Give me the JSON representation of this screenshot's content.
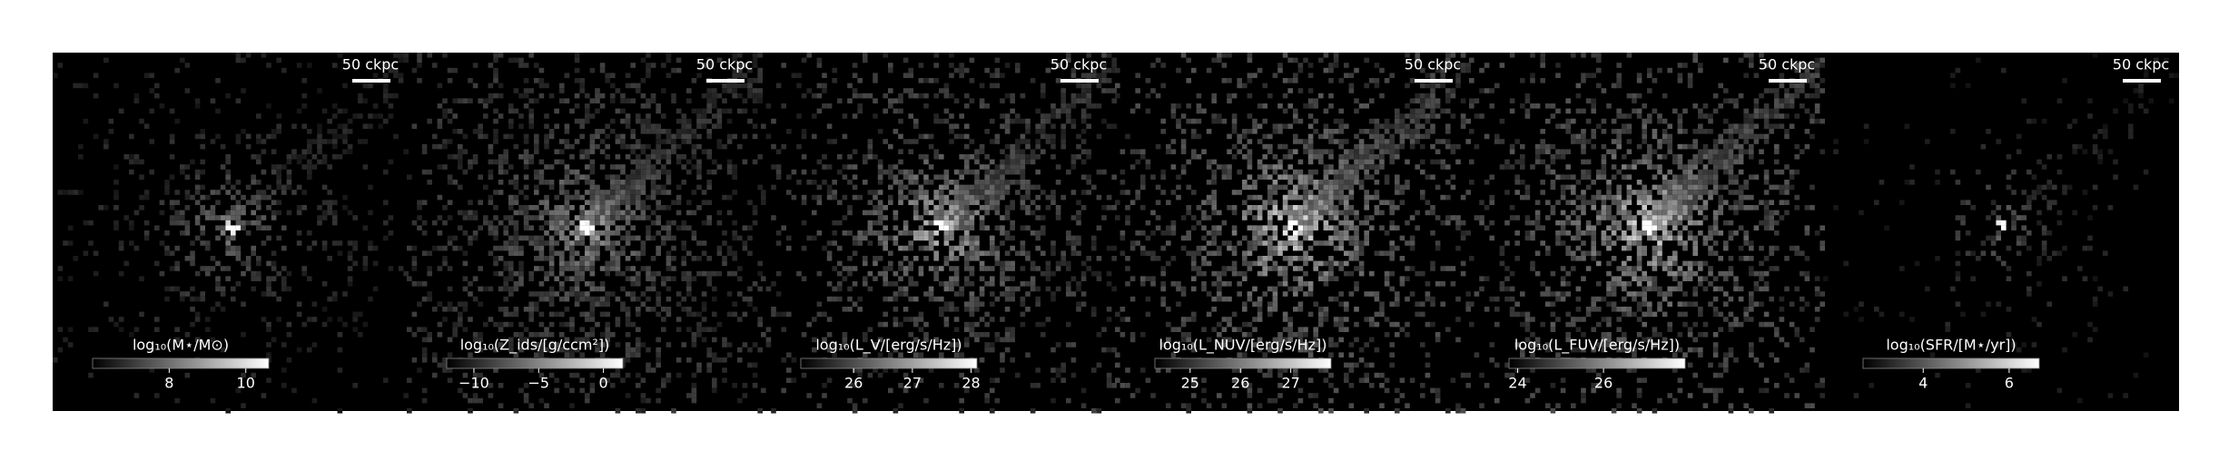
{
  "chart_data": [
    {
      "type": "image",
      "scalebar_label": "50 ckpc",
      "colorbar_label": "log₁₀(M⋆/M⊙)",
      "clim": [
        6.0,
        10.6
      ],
      "cticks": [
        8,
        10
      ]
    },
    {
      "type": "image",
      "scalebar_label": "50 ckpc",
      "colorbar_label": "log₁₀(Z_ids/[g/ccm²])",
      "clim": [
        -12.1,
        1.5
      ],
      "cticks": [
        {
          "value": -10,
          "label": "−10"
        },
        {
          "value": -5,
          "label": "−5"
        },
        0
      ]
    },
    {
      "type": "image",
      "scalebar_label": "50 ckpc",
      "colorbar_label": "log₁₀(L_V/[erg/s/Hz])",
      "clim": [
        25.1,
        28.1
      ],
      "cticks": [
        26,
        27,
        28
      ]
    },
    {
      "type": "image",
      "scalebar_label": "50 ckpc",
      "colorbar_label": "log₁₀(L_NUV/[erg/s/Hz])",
      "clim": [
        24.3,
        27.8
      ],
      "cticks": [
        25,
        26,
        27
      ]
    },
    {
      "type": "image",
      "scalebar_label": "50 ckpc",
      "colorbar_label": "log₁₀(L_FUV/[erg/s/Hz])",
      "clim": [
        23.8,
        27.9
      ],
      "cticks": [
        24,
        26
      ]
    },
    {
      "type": "image",
      "scalebar_label": "50 ckpc",
      "colorbar_label": "log₁₀(SFR/[M⋆/yr])",
      "clim": [
        2.6,
        6.7
      ],
      "cticks": [
        4,
        6
      ]
    }
  ]
}
